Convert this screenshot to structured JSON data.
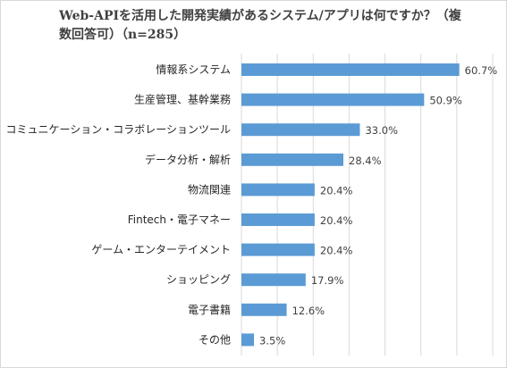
{
  "chart_data": {
    "type": "bar",
    "orientation": "horizontal",
    "title": "Web-APIを活用した開発実績があるシステム/アプリは何ですか？（複数回答可）（n=285）",
    "categories": [
      "情報系システム",
      "生産管理、基幹業務",
      "コミュニケーション・コラボレーションツール",
      "データ分析・解析",
      "物流関連",
      "Fintech・電子マネー",
      "ゲーム・エンターテイメント",
      "ショッピング",
      "電子書籍",
      "その他"
    ],
    "values": [
      60.7,
      50.9,
      33.0,
      28.4,
      20.4,
      20.4,
      20.4,
      17.9,
      12.6,
      3.5
    ],
    "value_labels": [
      "60.7%",
      "50.9%",
      "33.0%",
      "28.4%",
      "20.4%",
      "20.4%",
      "20.4%",
      "17.9%",
      "12.6%",
      "3.5%"
    ],
    "xlim": [
      0,
      70
    ],
    "grid": true,
    "legend": false,
    "bar_color": "#5b9bd5",
    "grid_color": "#d9d9d9"
  }
}
